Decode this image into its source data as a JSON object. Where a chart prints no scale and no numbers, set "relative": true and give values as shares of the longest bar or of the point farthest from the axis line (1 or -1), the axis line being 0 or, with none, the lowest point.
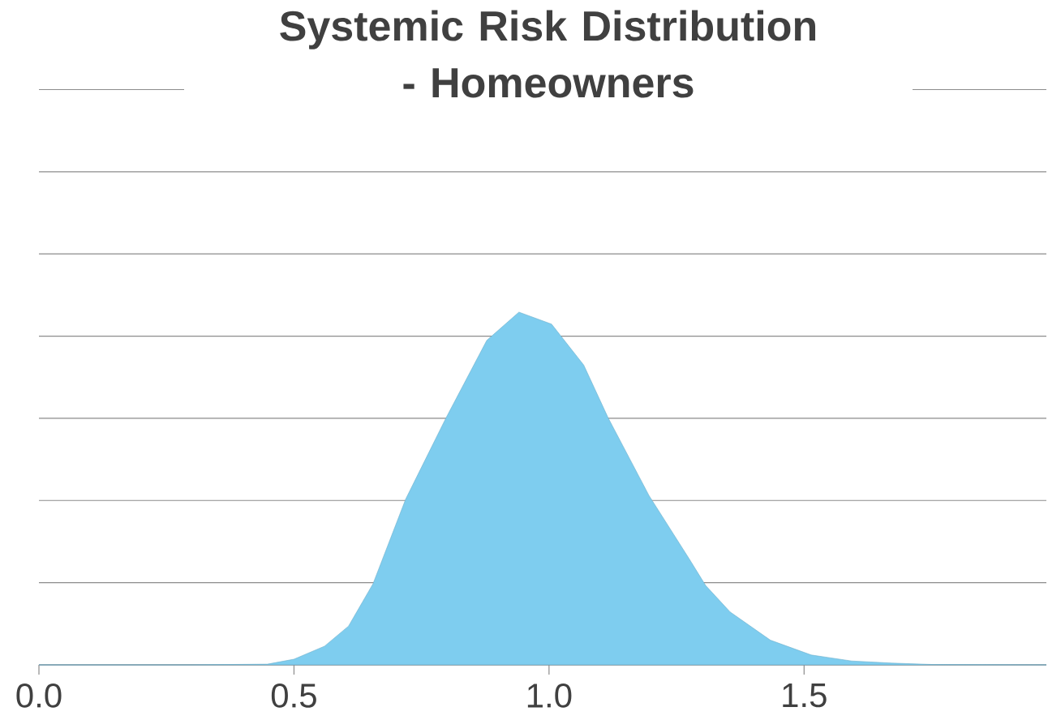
{
  "chart_data": {
    "type": "area",
    "title": "Systemic Risk Distribution - Homeowners",
    "relative": true,
    "grid": "y",
    "color": "#7ecdef",
    "x": [
      0.0,
      0.3,
      0.448,
      0.5,
      0.56,
      0.607,
      0.655,
      0.719,
      0.798,
      0.878,
      0.941,
      1.005,
      1.068,
      1.116,
      1.196,
      1.275,
      1.307,
      1.355,
      1.434,
      1.514,
      1.593,
      1.672,
      1.752,
      1.975
    ],
    "values": [
      0,
      0,
      0.002,
      0.016,
      0.053,
      0.11,
      0.23,
      0.47,
      0.7,
      0.92,
      1.0,
      0.966,
      0.85,
      0.7,
      0.48,
      0.3,
      0.225,
      0.15,
      0.07,
      0.028,
      0.011,
      0.005,
      0.001,
      0
    ],
    "xlim": [
      0,
      1.975
    ],
    "xticks": [
      {
        "value": 0,
        "label": "0.0"
      },
      {
        "value": 0.5,
        "label": "0.5"
      },
      {
        "value": 1,
        "label": "1.0"
      },
      {
        "value": 1.5,
        "label": "1.5"
      }
    ]
  }
}
